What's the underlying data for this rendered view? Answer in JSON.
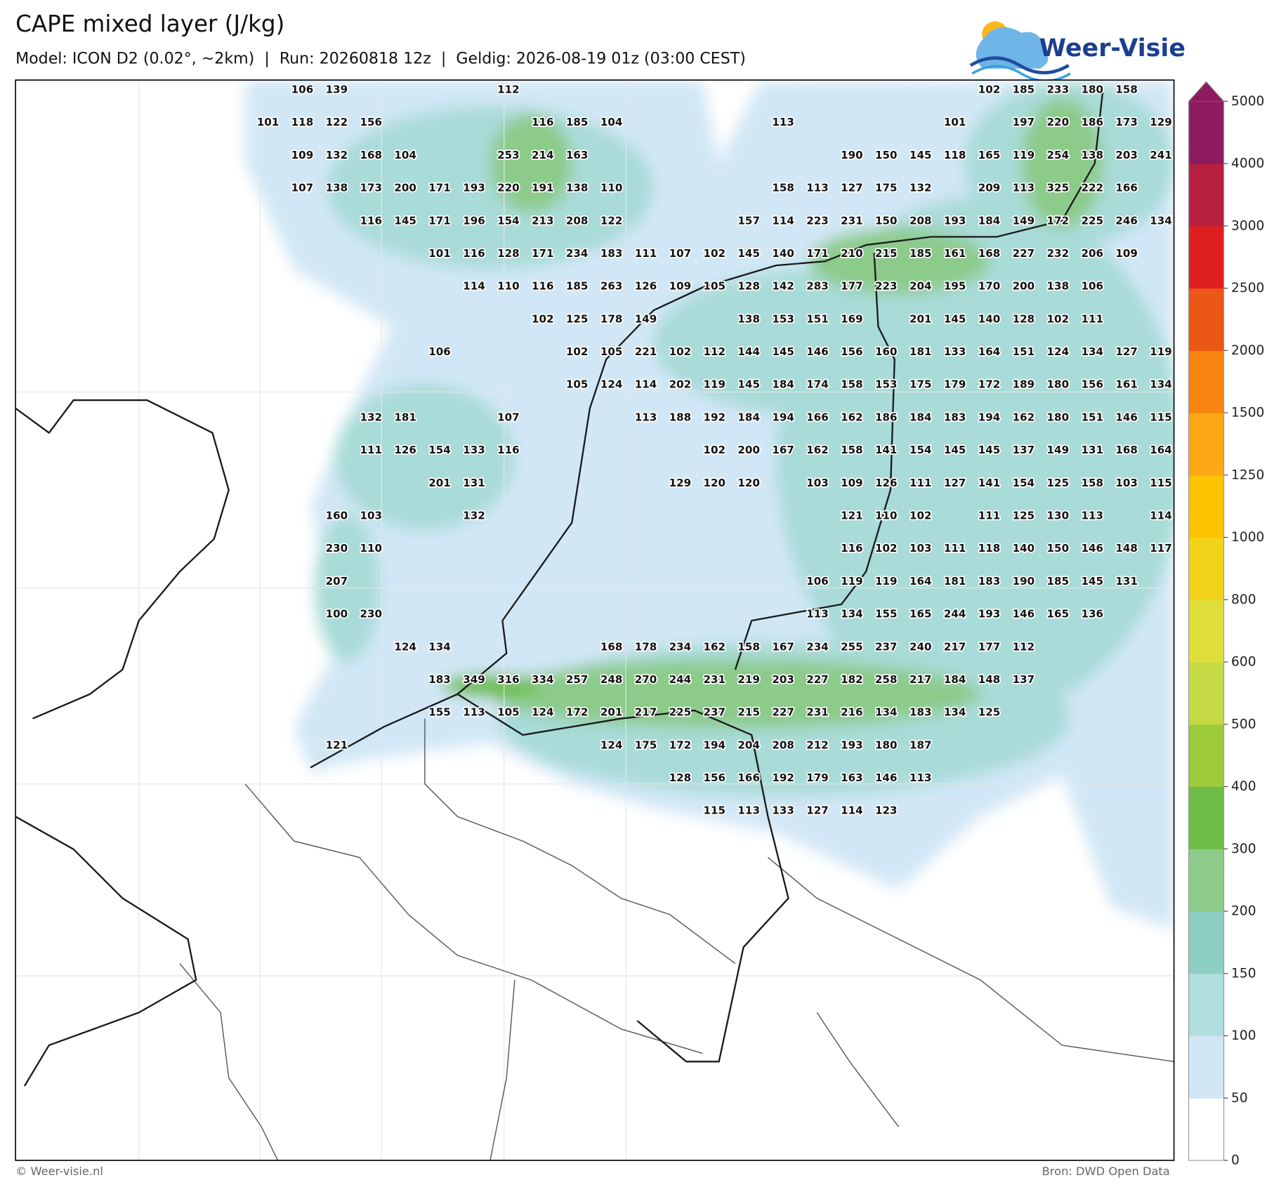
{
  "header": {
    "title": "CAPE mixed layer (J/kg)",
    "subtitle": "Model: ICON D2 (0.02°, ~2km)  |  Run: 20260818 12z  |  Geldig: 2026-08-19 01z (03:00 CEST)",
    "logo": "Weer-Visie"
  },
  "footer": {
    "left": "© Weer-visie.nl",
    "right": "Bron: DWD Open Data"
  },
  "colorbar": {
    "ticks": [
      0,
      50,
      100,
      150,
      200,
      300,
      400,
      500,
      600,
      800,
      1000,
      1250,
      1500,
      2000,
      2500,
      3000,
      4000,
      5000
    ],
    "colors": [
      "#ffffff",
      "#d1e7f6",
      "#b1dede",
      "#8dcfc3",
      "#8ccb8a",
      "#6dbd47",
      "#9dcb3c",
      "#c5da44",
      "#dfde3b",
      "#f3d31a",
      "#fcc300",
      "#fba716",
      "#f7850f",
      "#eb5716",
      "#df1f1f",
      "#b8203f",
      "#8e1b60"
    ],
    "extend_color": "#8e1b60"
  },
  "map": {
    "labels": [
      [
        null,
        106,
        139,
        null,
        null,
        null,
        null,
        112,
        null,
        null,
        null,
        null,
        null,
        null,
        null,
        null,
        null,
        null,
        null,
        null,
        null,
        102,
        185,
        233,
        180,
        158,
        null
      ],
      [
        101,
        118,
        122,
        156,
        null,
        null,
        null,
        null,
        116,
        185,
        104,
        null,
        null,
        null,
        null,
        113,
        null,
        null,
        null,
        null,
        101,
        null,
        197,
        220,
        186,
        173,
        129
      ],
      [
        null,
        109,
        132,
        168,
        104,
        null,
        null,
        253,
        214,
        163,
        null,
        null,
        null,
        null,
        null,
        null,
        null,
        190,
        150,
        145,
        118,
        165,
        119,
        254,
        138,
        203,
        241
      ],
      [
        null,
        107,
        138,
        173,
        200,
        171,
        193,
        220,
        191,
        138,
        110,
        null,
        null,
        null,
        null,
        158,
        113,
        127,
        175,
        132,
        null,
        209,
        113,
        325,
        222,
        166,
        null
      ],
      [
        null,
        null,
        null,
        116,
        145,
        171,
        196,
        154,
        213,
        208,
        122,
        null,
        null,
        null,
        157,
        114,
        223,
        231,
        150,
        208,
        193,
        184,
        149,
        172,
        225,
        246,
        134
      ],
      [
        null,
        null,
        null,
        null,
        null,
        101,
        116,
        128,
        171,
        234,
        183,
        111,
        107,
        102,
        145,
        140,
        171,
        210,
        215,
        185,
        161,
        168,
        227,
        232,
        206,
        109,
        null
      ],
      [
        null,
        null,
        null,
        null,
        null,
        null,
        114,
        110,
        116,
        185,
        263,
        126,
        109,
        105,
        128,
        142,
        283,
        177,
        223,
        204,
        195,
        170,
        200,
        138,
        106,
        null,
        null
      ],
      [
        null,
        null,
        null,
        null,
        null,
        null,
        null,
        null,
        102,
        125,
        178,
        149,
        null,
        null,
        138,
        153,
        151,
        169,
        null,
        201,
        145,
        140,
        128,
        102,
        111,
        null,
        null
      ],
      [
        null,
        null,
        null,
        null,
        null,
        106,
        null,
        null,
        null,
        102,
        105,
        221,
        102,
        112,
        144,
        145,
        146,
        156,
        160,
        181,
        133,
        164,
        151,
        124,
        134,
        127,
        119
      ],
      [
        null,
        null,
        null,
        null,
        null,
        null,
        null,
        null,
        null,
        105,
        124,
        114,
        202,
        119,
        145,
        184,
        174,
        158,
        153,
        175,
        179,
        172,
        189,
        180,
        156,
        161,
        134
      ],
      [
        null,
        null,
        null,
        132,
        181,
        null,
        null,
        107,
        null,
        null,
        null,
        113,
        188,
        192,
        184,
        194,
        166,
        162,
        186,
        184,
        183,
        194,
        162,
        180,
        151,
        146,
        115
      ],
      [
        null,
        null,
        null,
        111,
        126,
        154,
        133,
        116,
        null,
        null,
        null,
        null,
        null,
        102,
        200,
        167,
        162,
        158,
        141,
        154,
        145,
        145,
        137,
        149,
        131,
        168,
        164
      ],
      [
        null,
        null,
        null,
        null,
        null,
        201,
        131,
        null,
        null,
        null,
        null,
        null,
        129,
        120,
        120,
        null,
        103,
        109,
        126,
        111,
        127,
        141,
        154,
        125,
        158,
        103,
        115
      ],
      [
        null,
        null,
        160,
        103,
        null,
        null,
        132,
        null,
        null,
        null,
        null,
        null,
        null,
        null,
        null,
        null,
        null,
        121,
        110,
        102,
        null,
        111,
        125,
        130,
        113,
        null,
        114
      ],
      [
        null,
        null,
        230,
        110,
        null,
        null,
        null,
        null,
        null,
        null,
        null,
        null,
        null,
        null,
        null,
        null,
        null,
        116,
        102,
        103,
        111,
        118,
        140,
        150,
        146,
        148,
        117
      ],
      [
        null,
        null,
        207,
        null,
        null,
        null,
        null,
        null,
        null,
        null,
        null,
        null,
        null,
        null,
        null,
        null,
        106,
        119,
        119,
        164,
        181,
        183,
        190,
        185,
        145,
        131,
        null
      ],
      [
        null,
        null,
        100,
        230,
        null,
        null,
        null,
        null,
        null,
        null,
        null,
        null,
        null,
        null,
        null,
        null,
        113,
        134,
        155,
        165,
        244,
        193,
        146,
        165,
        136,
        null,
        null
      ],
      [
        null,
        null,
        null,
        null,
        124,
        134,
        null,
        null,
        null,
        null,
        168,
        178,
        234,
        162,
        158,
        167,
        234,
        255,
        237,
        240,
        217,
        177,
        112,
        null,
        null,
        null,
        null
      ],
      [
        null,
        null,
        null,
        null,
        null,
        183,
        349,
        316,
        334,
        257,
        248,
        270,
        244,
        231,
        219,
        203,
        227,
        182,
        258,
        217,
        184,
        148,
        137,
        null,
        null,
        null,
        null
      ],
      [
        null,
        null,
        null,
        null,
        null,
        155,
        113,
        105,
        124,
        172,
        201,
        217,
        225,
        237,
        215,
        227,
        231,
        216,
        134,
        183,
        134,
        125,
        null,
        null,
        null,
        null,
        null
      ],
      [
        null,
        null,
        121,
        null,
        null,
        null,
        null,
        null,
        null,
        null,
        124,
        175,
        172,
        194,
        204,
        208,
        212,
        193,
        180,
        187,
        null,
        null,
        null,
        null,
        null,
        null,
        null
      ],
      [
        null,
        null,
        null,
        null,
        null,
        null,
        null,
        null,
        null,
        null,
        null,
        null,
        128,
        156,
        166,
        192,
        179,
        163,
        146,
        113,
        null,
        null,
        null,
        null,
        null,
        null,
        null
      ],
      [
        null,
        null,
        null,
        null,
        null,
        null,
        null,
        null,
        null,
        null,
        null,
        null,
        null,
        115,
        113,
        133,
        127,
        114,
        123,
        null,
        null,
        null,
        null,
        null,
        null,
        null,
        null
      ]
    ]
  }
}
